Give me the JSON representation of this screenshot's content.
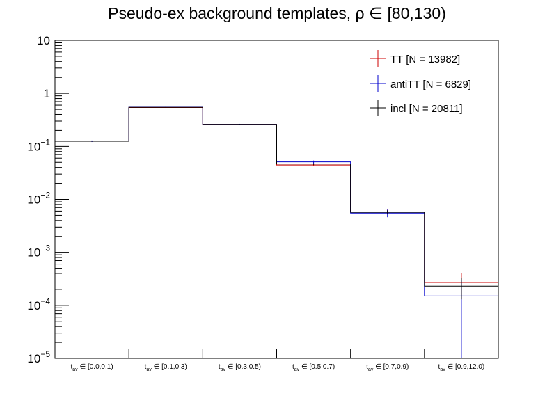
{
  "chart_data": {
    "type": "line",
    "title": "Pseudo-ex background templates, ρ ∈ [80,130)",
    "xlabel": "",
    "ylabel": "",
    "y_scale": "log",
    "ylim": [
      1e-05,
      10
    ],
    "grid": false,
    "legend_position": "top-right",
    "categories": [
      "t_av ∈ [0.0,0.1)",
      "t_av ∈ [0.1,0.3)",
      "t_av ∈ [0.3,0.5)",
      "t_av ∈ [0.5,0.7)",
      "t_av ∈ [0.7,0.9)",
      "t_av ∈ [0.9,12.0)"
    ],
    "category_labels": [
      {
        "main": "t",
        "sub": "av",
        "rest": " ∈ [0.0,0.1)"
      },
      {
        "main": "t",
        "sub": "av",
        "rest": " ∈ [0.1,0.3)"
      },
      {
        "main": "t",
        "sub": "av",
        "rest": " ∈ [0.3,0.5)"
      },
      {
        "main": "t",
        "sub": "av",
        "rest": " ∈ [0.5,0.7)"
      },
      {
        "main": "t",
        "sub": "av",
        "rest": " ∈ [0.7,0.9)"
      },
      {
        "main": "t",
        "sub": "av",
        "rest": " ∈ [0.9,12.0)"
      }
    ],
    "y_ticks": [
      {
        "value": 10,
        "base": "10",
        "exp": ""
      },
      {
        "value": 1,
        "base": "1",
        "exp": ""
      },
      {
        "value": 0.1,
        "base": "10",
        "exp": "−1"
      },
      {
        "value": 0.01,
        "base": "10",
        "exp": "−2"
      },
      {
        "value": 0.001,
        "base": "10",
        "exp": "−3"
      },
      {
        "value": 0.0001,
        "base": "10",
        "exp": "−4"
      },
      {
        "value": 1e-05,
        "base": "10",
        "exp": "−5"
      }
    ],
    "series": [
      {
        "name": "TT [N = 13982]",
        "color": "#cc0000",
        "values": [
          0.125,
          0.54,
          0.26,
          0.0445,
          0.0058,
          0.00027
        ],
        "errors_low": [
          0.003,
          0.007,
          0.004,
          0.0017,
          0.0006,
          0.00014
        ],
        "errors_high": [
          0.003,
          0.007,
          0.004,
          0.0017,
          0.0006,
          0.00014
        ]
      },
      {
        "name": "antiTT [N = 6829]",
        "color": "#0000cc",
        "values": [
          0.125,
          0.55,
          0.26,
          0.051,
          0.0055,
          0.00015
        ],
        "errors_low": [
          0.004,
          0.009,
          0.006,
          0.003,
          0.0009,
          0.00015
        ],
        "errors_high": [
          0.004,
          0.009,
          0.006,
          0.003,
          0.0009,
          0.00015
        ]
      },
      {
        "name": "incl [N = 20811]",
        "color": "#000000",
        "values": [
          0.125,
          0.545,
          0.26,
          0.0465,
          0.0057,
          0.00023
        ],
        "errors_low": [
          0.002,
          0.005,
          0.003,
          0.0015,
          0.0005,
          0.0001
        ],
        "errors_high": [
          0.002,
          0.005,
          0.003,
          0.0015,
          0.0005,
          0.0001
        ]
      }
    ]
  }
}
